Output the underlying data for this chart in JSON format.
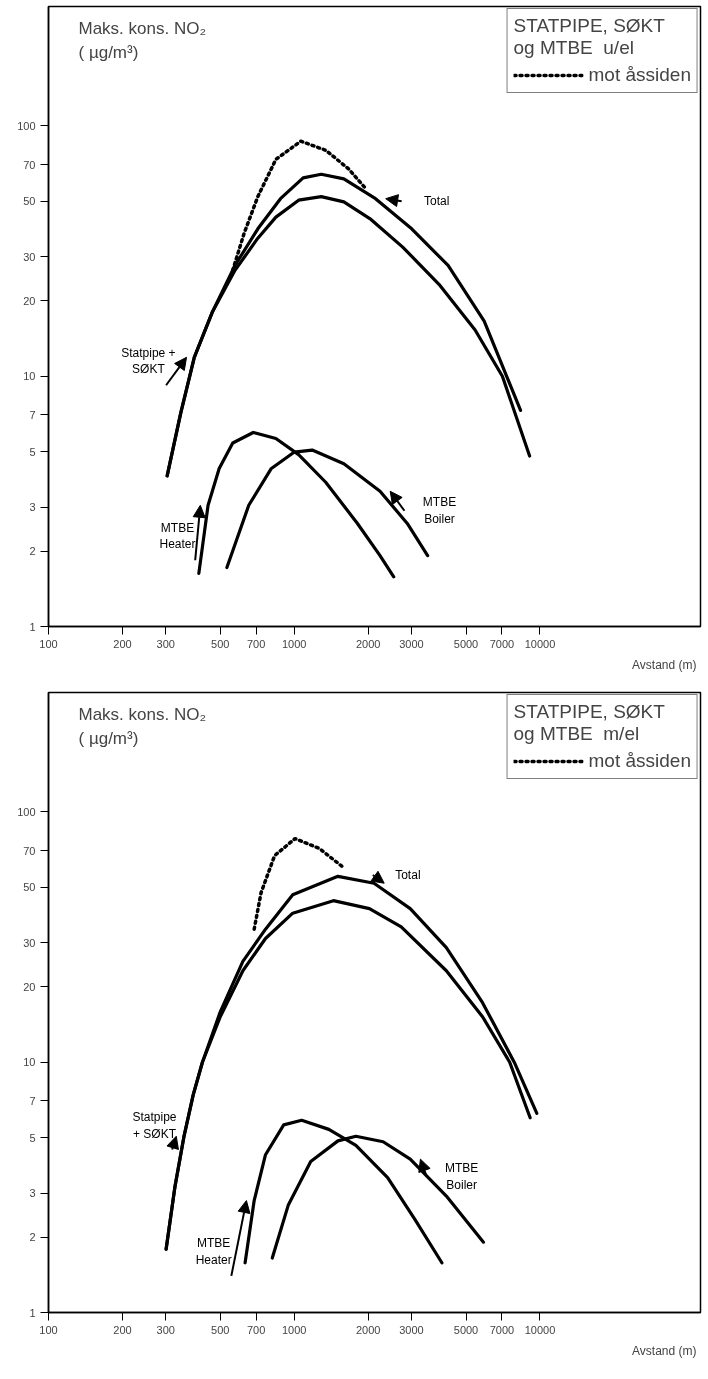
{
  "chart_data": [
    {
      "type": "line",
      "ylabel": "Maks. kons. NO₂\n( µg/m³)",
      "xlabel": "Avstand (m)",
      "legend_title": "STATPIPE, SØKT\nog MTBE  u/el",
      "legend": "top right",
      "log": "xy",
      "grid": false,
      "marker": "none",
      "xlim": [
        100,
        45000
      ],
      "ylim": [
        1,
        300
      ],
      "xticks": [
        100,
        200,
        300,
        500,
        700,
        1000,
        2000,
        3000,
        5000,
        7000,
        10000
      ],
      "yticks": [
        1,
        2,
        3,
        5,
        7,
        10,
        20,
        30,
        50,
        70,
        100
      ],
      "series": [
        {
          "name": "Statpipe +\nSØKT",
          "color": "#000000",
          "line_style": "solid",
          "x": [
            304,
            345,
            392,
            465,
            574,
            711,
            842,
            1042,
            1288,
            1592,
            2052,
            2763,
            3882,
            5445,
            7031,
            9075
          ],
          "values": [
            4.0,
            7.1,
            11.9,
            18.1,
            26.5,
            35.6,
            43.2,
            50.5,
            52.2,
            49.7,
            42.3,
            32.8,
            23.3,
            15.3,
            10.0,
            4.8
          ]
        },
        {
          "name": "Total",
          "color": "#000000",
          "line_style": "solid",
          "x": [
            304,
            345,
            392,
            465,
            574,
            711,
            879,
            1087,
            1288,
            1592,
            2142,
            3006,
            4227,
            5929,
            8337
          ],
          "values": [
            4.0,
            7.1,
            11.9,
            18.1,
            27.7,
            38.8,
            51.2,
            62.0,
            64.1,
            61.4,
            51.2,
            38.8,
            27.7,
            16.6,
            7.3
          ]
        },
        {
          "name": "mot åssiden",
          "color": "#000000",
          "line_style": "dotted",
          "x": [
            562,
            625,
            711,
            842,
            1064,
            1343,
            1660,
            1968
          ],
          "values": [
            26.5,
            37.2,
            52.2,
            73.5,
            86.9,
            79.9,
            67.5,
            55.7
          ]
        },
        {
          "name": "MTBE\nHeater",
          "color": "#000000",
          "line_style": "solid",
          "x": [
            409,
            446,
            495,
            562,
            681,
            842,
            1042,
            1343,
            1808,
            2234,
            2540
          ],
          "values": [
            1.63,
            3.05,
            4.28,
            5.41,
            5.96,
            5.64,
            4.86,
            3.77,
            2.58,
            1.92,
            1.58
          ]
        },
        {
          "name": "MTBE\nBoiler",
          "color": "#000000",
          "line_style": "solid",
          "x": [
            532,
            653,
            807,
            998,
            1183,
            1592,
            2234,
            2884,
            3490
          ],
          "values": [
            1.72,
            3.05,
            4.28,
            4.97,
            5.07,
            4.47,
            3.47,
            2.58,
            1.92
          ]
        }
      ]
    },
    {
      "type": "line",
      "ylabel": "Maks. kons. NO₂\n( µg/m³)",
      "xlabel": "Avstand (m)",
      "legend_title": "STATPIPE, SØKT\nog MTBE  m/el",
      "legend": "top right",
      "log": "xy",
      "grid": false,
      "marker": "none",
      "xlim": [
        100,
        45000
      ],
      "ylim": [
        1,
        300
      ],
      "xticks": [
        100,
        200,
        300,
        500,
        700,
        1000,
        2000,
        3000,
        5000,
        7000,
        10000
      ],
      "yticks": [
        1,
        2,
        3,
        5,
        7,
        10,
        20,
        30,
        50,
        70,
        100
      ],
      "series": [
        {
          "name": "Statpipe\n+ SØKT",
          "color": "#000000",
          "line_style": "solid",
          "x": [
            301,
            327,
            356,
            388,
            423,
            500,
            618,
            764,
            986,
            1443,
            2023,
            2725,
            4159,
            5837,
            7530,
            9120
          ],
          "values": [
            1.79,
            3.18,
            5.06,
            7.4,
            10.0,
            15.2,
            23.2,
            31.2,
            39.4,
            44.2,
            41.1,
            34.7,
            23.2,
            15.2,
            10.0,
            6.0
          ]
        },
        {
          "name": "Total",
          "color": "#000000",
          "line_style": "solid",
          "x": [
            301,
            327,
            356,
            388,
            423,
            500,
            618,
            764,
            986,
            1506,
            2112,
            2965,
            4159,
            5837,
            7857,
            9710
          ],
          "values": [
            1.79,
            3.18,
            5.06,
            7.4,
            10.0,
            15.9,
            25.3,
            34.0,
            46.7,
            55.3,
            51.9,
            41.1,
            28.7,
            17.3,
            10.0,
            6.25
          ]
        },
        {
          "name": "mot åssiden",
          "color": "#000000",
          "line_style": "dotted",
          "x": [
            687,
            733,
            832,
            1007,
            1270,
            1604
          ],
          "values": [
            34.0,
            47.6,
            66.9,
            78.2,
            71.3,
            59.4
          ]
        },
        {
          "name": "MTBE\nHeater",
          "color": "#000000",
          "line_style": "solid",
          "x": [
            631,
            687,
            764,
            906,
            1072,
            1383,
            1782,
            2399,
            3092,
            3988
          ],
          "values": [
            1.58,
            2.8,
            4.27,
            5.62,
            5.86,
            5.39,
            4.65,
            3.46,
            2.36,
            1.58
          ]
        },
        {
          "name": "MTBE\nBoiler",
          "color": "#000000",
          "line_style": "solid",
          "x": [
            814,
            945,
            1167,
            1506,
            1782,
            2300,
            2965,
            4159,
            5890
          ],
          "values": [
            1.65,
            2.68,
            4.01,
            4.85,
            5.06,
            4.81,
            4.1,
            2.92,
            1.91
          ]
        }
      ]
    }
  ]
}
